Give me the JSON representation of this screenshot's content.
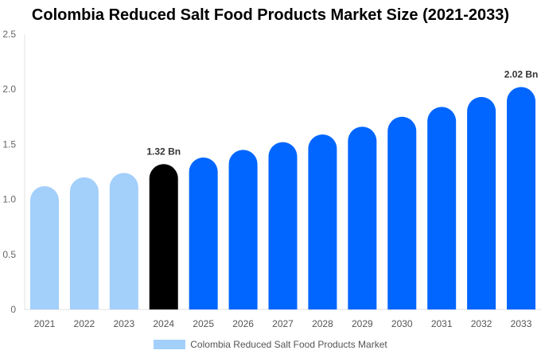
{
  "chart_data": {
    "type": "bar",
    "title": "Colombia Reduced Salt Food Products Market Size (2021-2033)",
    "categories": [
      "2021",
      "2022",
      "2023",
      "2024",
      "2025",
      "2026",
      "2027",
      "2028",
      "2029",
      "2030",
      "2031",
      "2032",
      "2033"
    ],
    "series": [
      {
        "name": "Colombia Reduced Salt Food Products Market",
        "values": [
          1.12,
          1.2,
          1.24,
          1.32,
          1.38,
          1.45,
          1.52,
          1.59,
          1.66,
          1.75,
          1.84,
          1.93,
          2.02
        ]
      }
    ],
    "bar_colors": [
      "#a3cffb",
      "#a3cffb",
      "#a3cffb",
      "#000000",
      "#0066ff",
      "#0066ff",
      "#0066ff",
      "#0066ff",
      "#0066ff",
      "#0066ff",
      "#0066ff",
      "#0066ff",
      "#0066ff"
    ],
    "data_labels": {
      "3": "1.32 Bn",
      "12": "2.02 Bn"
    },
    "yticks": [
      "0",
      "0.5",
      "1.0",
      "1.5",
      "2.0",
      "2.5"
    ],
    "ylim": [
      0,
      2.5
    ],
    "grid": false,
    "legend_position": "bottom"
  }
}
